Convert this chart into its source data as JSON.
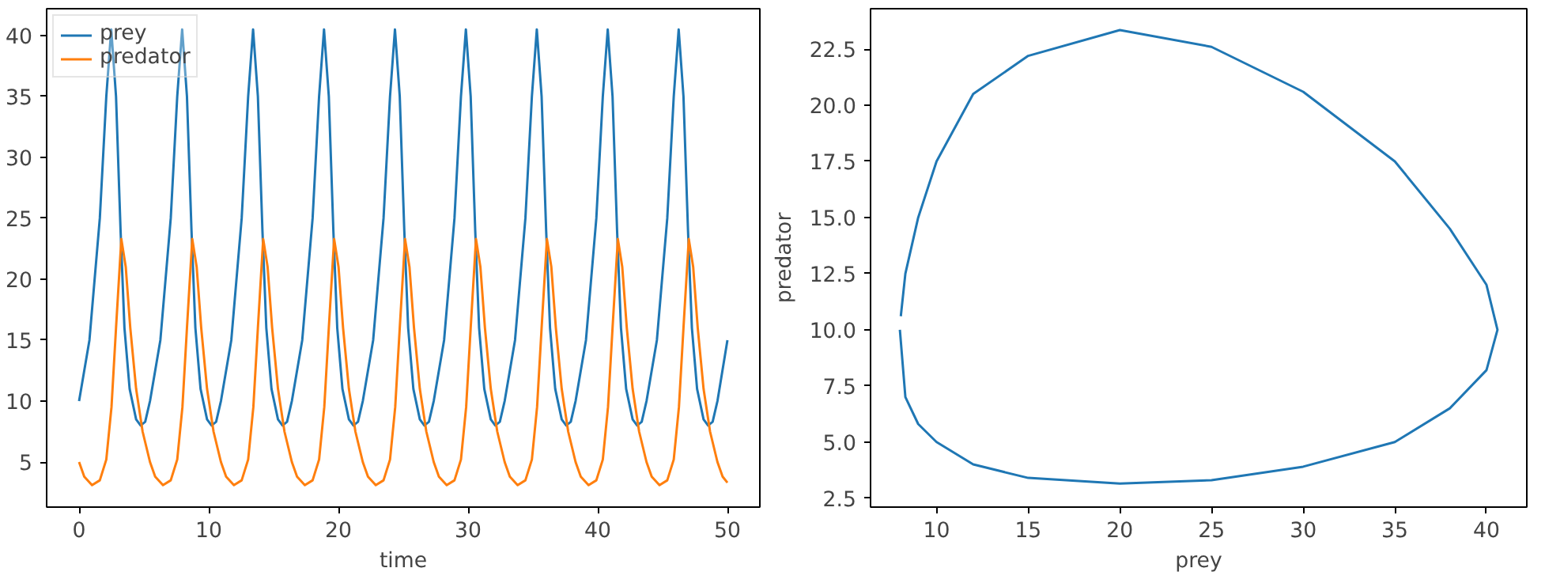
{
  "chart_data": [
    {
      "type": "line",
      "xlabel": "time",
      "xlim": [
        -2.5,
        52.5
      ],
      "ylim": [
        1.3,
        42.2
      ],
      "xticks": [
        0,
        10,
        20,
        30,
        40,
        50
      ],
      "yticks": [
        5,
        10,
        15,
        20,
        25,
        30,
        35,
        40
      ],
      "grid": false,
      "legend": "top left",
      "marker": "none",
      "line_style": "solid",
      "series": [
        {
          "name": "prey",
          "color": "#1f77b4",
          "x": [
            0,
            0.8,
            1.6,
            2.1,
            2.48,
            2.85,
            3.2,
            3.5,
            3.9,
            4.4,
            4.75,
            5.1,
            5.47,
            6.27,
            7.07,
            7.57,
            7.95,
            8.32,
            8.67,
            8.97,
            9.37,
            9.87,
            10.22,
            10.57,
            10.94,
            11.74,
            12.54,
            13.04,
            13.42,
            13.79,
            14.14,
            14.44,
            14.84,
            15.34,
            15.69,
            16.04,
            16.41,
            17.21,
            18.01,
            18.51,
            18.89,
            19.26,
            19.61,
            19.91,
            20.31,
            20.81,
            21.16,
            21.51,
            21.88,
            22.68,
            23.48,
            23.98,
            24.36,
            24.73,
            25.08,
            25.38,
            25.78,
            26.28,
            26.63,
            26.98,
            27.35,
            28.15,
            28.95,
            29.45,
            29.83,
            30.2,
            30.55,
            30.85,
            31.25,
            31.75,
            32.1,
            32.45,
            32.82,
            33.62,
            34.42,
            34.92,
            35.3,
            35.67,
            36.02,
            36.32,
            36.72,
            37.22,
            37.57,
            37.92,
            38.29,
            39.09,
            39.89,
            40.39,
            40.77,
            41.14,
            41.49,
            41.79,
            42.19,
            42.69,
            43.04,
            43.39,
            43.76,
            44.56,
            45.36,
            45.86,
            46.24,
            46.61,
            46.96,
            47.26,
            47.66,
            48.16,
            48.51,
            48.86,
            49.23,
            50
          ],
          "values": [
            10,
            15,
            25,
            35,
            40.5,
            35,
            24,
            16,
            11,
            8.5,
            8.0,
            8.3,
            10,
            15,
            25,
            35,
            40.5,
            35,
            24,
            16,
            11,
            8.5,
            8.0,
            8.3,
            10,
            15,
            25,
            35,
            40.5,
            35,
            24,
            16,
            11,
            8.5,
            8.0,
            8.3,
            10,
            15,
            25,
            35,
            40.5,
            35,
            24,
            16,
            11,
            8.5,
            8.0,
            8.3,
            10,
            15,
            25,
            35,
            40.5,
            35,
            24,
            16,
            11,
            8.5,
            8.0,
            8.3,
            10,
            15,
            25,
            35,
            40.5,
            35,
            24,
            16,
            11,
            8.5,
            8.0,
            8.3,
            10,
            15,
            25,
            35,
            40.5,
            35,
            24,
            16,
            11,
            8.5,
            8.0,
            8.3,
            10,
            15,
            25,
            35,
            40.5,
            35,
            24,
            16,
            11,
            8.5,
            8.0,
            8.3,
            10,
            15,
            25,
            35,
            40.5,
            35,
            24,
            16,
            11,
            8.5,
            8.0,
            8.3,
            10,
            15
          ]
        },
        {
          "name": "predator",
          "color": "#ff7f0e",
          "x": [
            0,
            0.4,
            1,
            1.6,
            2.1,
            2.5,
            2.85,
            3.26,
            3.6,
            3.95,
            4.4,
            4.9,
            5.47,
            5.87,
            6.47,
            7.07,
            7.57,
            7.97,
            8.32,
            8.73,
            9.07,
            9.42,
            9.87,
            10.37,
            10.94,
            11.34,
            11.94,
            12.54,
            13.04,
            13.44,
            13.79,
            14.2,
            14.54,
            14.89,
            15.34,
            15.84,
            16.41,
            16.81,
            17.41,
            18.01,
            18.51,
            18.91,
            19.26,
            19.67,
            20.01,
            20.36,
            20.81,
            21.31,
            21.88,
            22.28,
            22.88,
            23.48,
            23.98,
            24.38,
            24.73,
            25.14,
            25.48,
            25.83,
            26.28,
            26.78,
            27.35,
            27.75,
            28.35,
            28.95,
            29.45,
            29.85,
            30.2,
            30.61,
            30.95,
            31.3,
            31.75,
            32.25,
            32.82,
            33.22,
            33.82,
            34.42,
            34.92,
            35.32,
            35.67,
            36.08,
            36.42,
            36.77,
            37.22,
            37.72,
            38.29,
            38.69,
            39.29,
            39.89,
            40.39,
            40.79,
            41.14,
            41.55,
            41.89,
            42.24,
            42.69,
            43.19,
            43.76,
            44.16,
            44.76,
            45.36,
            45.86,
            46.26,
            46.61,
            47.02,
            47.36,
            47.71,
            48.16,
            48.66,
            49.23,
            49.63,
            50
          ],
          "values": [
            5,
            3.8,
            3.1,
            3.5,
            5.2,
            9.5,
            16,
            23.3,
            21,
            16,
            11,
            7.5,
            5,
            3.8,
            3.1,
            3.5,
            5.2,
            9.5,
            16,
            23.3,
            21,
            16,
            11,
            7.5,
            5,
            3.8,
            3.1,
            3.5,
            5.2,
            9.5,
            16,
            23.3,
            21,
            16,
            11,
            7.5,
            5,
            3.8,
            3.1,
            3.5,
            5.2,
            9.5,
            16,
            23.3,
            21,
            16,
            11,
            7.5,
            5,
            3.8,
            3.1,
            3.5,
            5.2,
            9.5,
            16,
            23.3,
            21,
            16,
            11,
            7.5,
            5,
            3.8,
            3.1,
            3.5,
            5.2,
            9.5,
            16,
            23.3,
            21,
            16,
            11,
            7.5,
            5,
            3.8,
            3.1,
            3.5,
            5.2,
            9.5,
            16,
            23.3,
            21,
            16,
            11,
            7.5,
            5,
            3.8,
            3.1,
            3.5,
            5.2,
            9.5,
            16,
            23.3,
            21,
            16,
            11,
            7.5,
            5,
            3.8,
            3.1,
            3.5,
            5.2,
            9.5,
            16,
            23.3,
            21,
            16,
            11,
            7.5,
            5,
            3.8,
            3.3
          ]
        }
      ]
    },
    {
      "type": "line",
      "xlabel": "prey",
      "ylabel": "predator",
      "xlim": [
        6.4,
        42.2
      ],
      "ylim": [
        2.1,
        24.3
      ],
      "xticks": [
        10,
        15,
        20,
        25,
        30,
        35,
        40
      ],
      "yticks": [
        {
          "value": 2.5,
          "label": "2.5"
        },
        {
          "value": 5,
          "label": "5.0"
        },
        {
          "value": 7.5,
          "label": "7.5"
        },
        {
          "value": 10,
          "label": "10.0"
        },
        {
          "value": 12.5,
          "label": "12.5"
        },
        {
          "value": 15,
          "label": "15.0"
        },
        {
          "value": 17.5,
          "label": "17.5"
        },
        {
          "value": 20,
          "label": "20.0"
        },
        {
          "value": 22.5,
          "label": "22.5"
        }
      ],
      "grid": false,
      "legend": false,
      "marker": "none",
      "line_style": "solid",
      "series": [
        {
          "color": "#1f77b4",
          "x": [
            8,
            8.3,
            9,
            10,
            12,
            15,
            20,
            25,
            30,
            35,
            38,
            40,
            40.6,
            40,
            38,
            35,
            30,
            25,
            20,
            15,
            12,
            10,
            9,
            8.3,
            8.05
          ],
          "values": [
            10,
            7,
            5.8,
            5,
            4,
            3.4,
            3.15,
            3.3,
            3.9,
            5,
            6.5,
            8.2,
            10,
            12,
            14.5,
            17.5,
            20.6,
            22.6,
            23.35,
            22.2,
            20.5,
            17.5,
            15,
            12.5,
            10.6
          ]
        }
      ]
    }
  ]
}
